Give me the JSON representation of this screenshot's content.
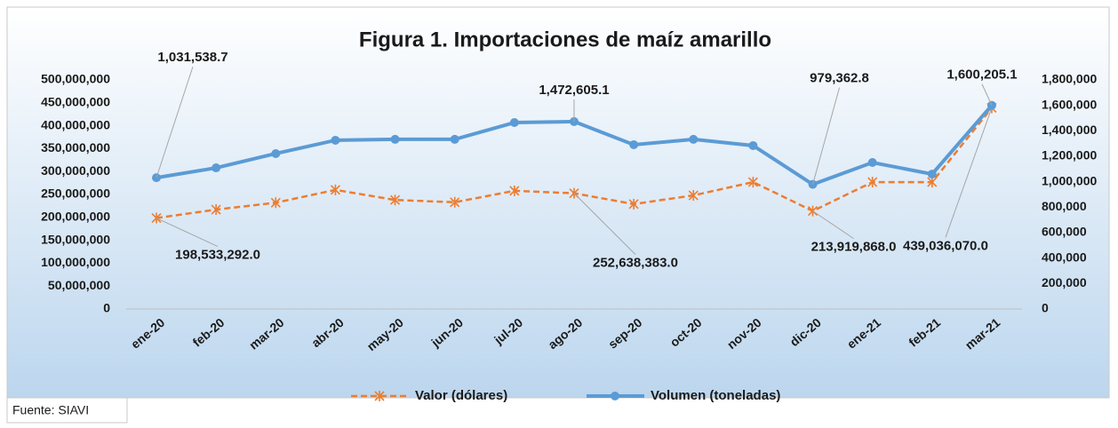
{
  "chart_data": {
    "type": "line",
    "title": "Figura 1. Importaciones de maíz amarillo",
    "source": "Fuente: SIAVI",
    "categories": [
      "ene-20",
      "feb-20",
      "mar-20",
      "abr-20",
      "may-20",
      "jun-20",
      "jul-20",
      "ago-20",
      "sep-20",
      "oct-20",
      "nov-20",
      "dic-20",
      "ene-21",
      "feb-21",
      "mar-21"
    ],
    "series": [
      {
        "name": "Valor (dólares)",
        "color": "#ED7D31",
        "axis": "y",
        "values": [
          198533292.0,
          217000000,
          232000000,
          260000000,
          238000000,
          233000000,
          258000000,
          252638383.0,
          229000000,
          248000000,
          277000000,
          213919868.0,
          277000000,
          277000000,
          439036070.0
        ],
        "value_labels": [
          "198,533,292.0",
          null,
          null,
          null,
          null,
          null,
          null,
          "252,638,383.0",
          null,
          null,
          null,
          "213,919,868.0",
          null,
          null,
          "439,036,070.0"
        ]
      },
      {
        "name": "Volumen (toneladas)",
        "color": "#5B9BD5",
        "axis": "y2",
        "values": [
          1031538.7,
          1109000,
          1221000,
          1326000,
          1333000,
          1333000,
          1465000,
          1472605.1,
          1291000,
          1333000,
          1284000,
          979362.8,
          1151000,
          1060000,
          1600205.1
        ],
        "value_labels": [
          "1,031,538.7",
          null,
          null,
          null,
          null,
          null,
          null,
          "1,472,605.1",
          null,
          null,
          null,
          "979,362.8",
          null,
          null,
          "1,600,205.1"
        ]
      }
    ],
    "ylim": [
      0,
      500000000
    ],
    "yticks": [
      0,
      {
        "value": 50000000,
        "label": "50,000,000"
      },
      {
        "value": 100000000,
        "label": "100,000,000"
      },
      {
        "value": 150000000,
        "label": "150,000,000"
      },
      {
        "value": 200000000,
        "label": "200,000,000"
      },
      {
        "value": 250000000,
        "label": "250,000,000"
      },
      {
        "value": 300000000,
        "label": "300,000,000"
      },
      {
        "value": 350000000,
        "label": "350,000,000"
      },
      {
        "value": 400000000,
        "label": "400,000,000"
      },
      {
        "value": 450000000,
        "label": "450,000,000"
      },
      {
        "value": 500000000,
        "label": "500,000,000"
      }
    ],
    "y2lim": [
      0,
      1800000
    ],
    "y2ticks": [
      0,
      {
        "value": 200000,
        "label": "200,000"
      },
      {
        "value": 400000,
        "label": "400,000"
      },
      {
        "value": 600000,
        "label": "600,000"
      },
      {
        "value": 800000,
        "label": "800,000"
      },
      {
        "value": 1000000,
        "label": "1,000,000"
      },
      {
        "value": 1200000,
        "label": "1,200,000"
      },
      {
        "value": 1400000,
        "label": "1,400,000"
      },
      {
        "value": 1600000,
        "label": "1,600,000"
      },
      {
        "value": 1800000,
        "label": "1,800,000"
      }
    ],
    "legend": "bottom",
    "grid": false
  }
}
